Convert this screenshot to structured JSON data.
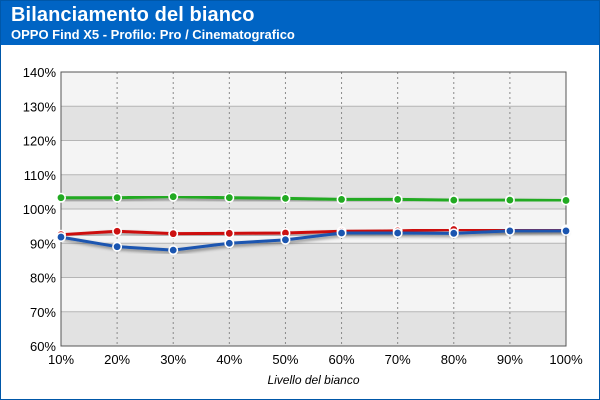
{
  "header": {
    "title": "Bilanciamento del bianco",
    "subtitle": "OPPO Find X5 - Profilo: Pro / Cinematografico"
  },
  "chart_data": {
    "type": "line",
    "title": "Bilanciamento del bianco",
    "subtitle": "OPPO Find X5 - Profilo: Pro / Cinematografico",
    "xlabel": "Livello del bianco",
    "ylabel": "",
    "categories": [
      "10%",
      "20%",
      "30%",
      "40%",
      "50%",
      "60%",
      "70%",
      "80%",
      "90%",
      "100%"
    ],
    "y_ticks": [
      "60%",
      "70%",
      "80%",
      "90%",
      "100%",
      "110%",
      "120%",
      "130%",
      "140%"
    ],
    "ylim": [
      60,
      140
    ],
    "grid": "horizontal bands, dotted vertical lines",
    "series": [
      {
        "color": "#22aa22",
        "values": [
          103.3,
          103.3,
          103.6,
          103.3,
          103.1,
          102.8,
          102.8,
          102.6,
          102.6,
          102.5
        ]
      },
      {
        "color": "#cc1111",
        "values": [
          92.5,
          93.5,
          92.8,
          92.9,
          93.0,
          93.5,
          93.6,
          94.0,
          93.8,
          94.0
        ]
      },
      {
        "color": "#1a55b0",
        "values": [
          91.8,
          89.0,
          88.0,
          90.0,
          91.0,
          93.0,
          93.0,
          92.9,
          93.6,
          93.6
        ]
      }
    ]
  }
}
